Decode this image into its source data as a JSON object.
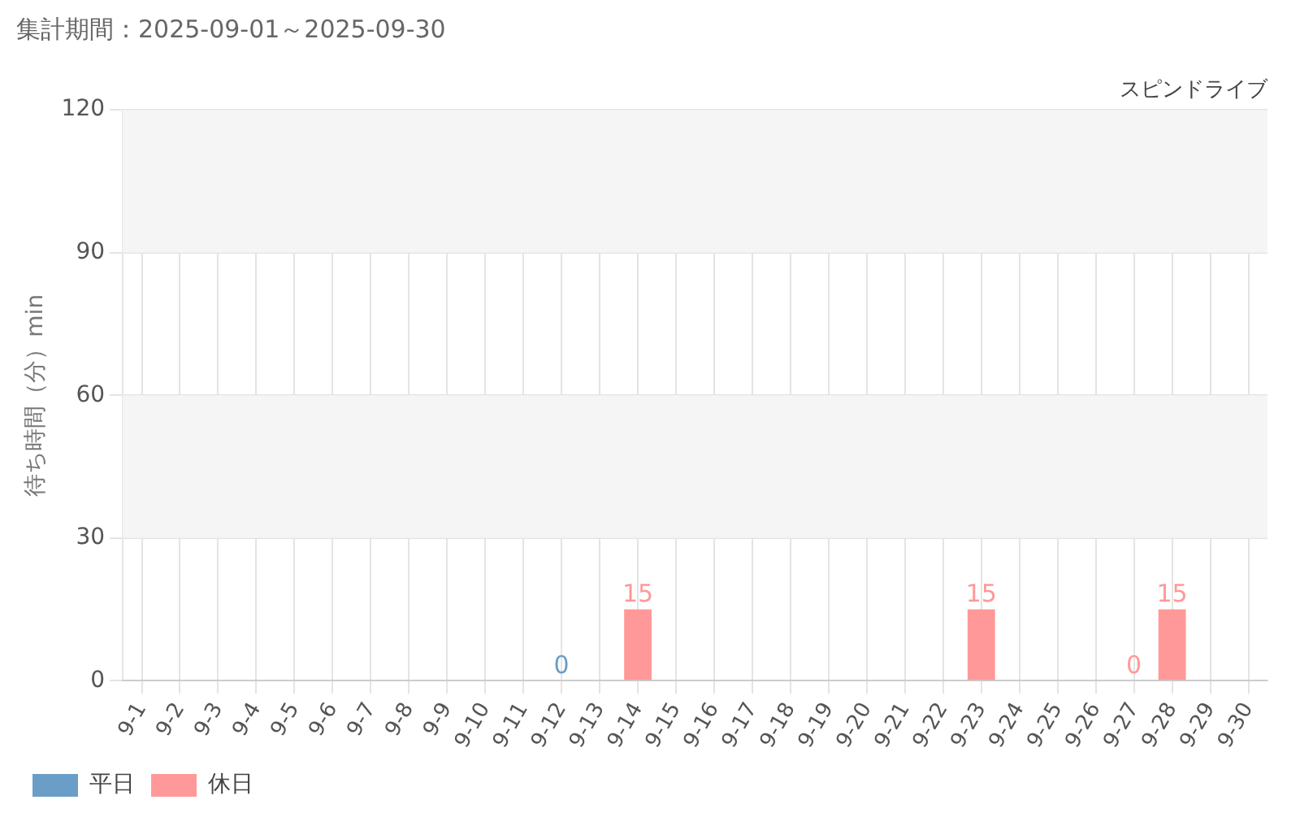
{
  "chart_data": {
    "type": "bar",
    "title": "集計期間：2025-09-01～2025-09-30",
    "subtitle": "スピンドライブ",
    "ylabel": "待ち時間（分）min",
    "categories": [
      "9-1",
      "9-2",
      "9-3",
      "9-4",
      "9-5",
      "9-6",
      "9-7",
      "9-8",
      "9-9",
      "9-10",
      "9-11",
      "9-12",
      "9-13",
      "9-14",
      "9-15",
      "9-16",
      "9-17",
      "9-18",
      "9-19",
      "9-20",
      "9-21",
      "9-22",
      "9-23",
      "9-24",
      "9-25",
      "9-26",
      "9-27",
      "9-28",
      "9-29",
      "9-30"
    ],
    "series": [
      {
        "name": "平日",
        "color": "#6a9ec6",
        "values": [
          null,
          null,
          null,
          null,
          null,
          null,
          null,
          null,
          null,
          null,
          null,
          0,
          null,
          null,
          null,
          null,
          null,
          null,
          null,
          null,
          null,
          null,
          null,
          null,
          null,
          null,
          null,
          null,
          null,
          null
        ]
      },
      {
        "name": "休日",
        "color": "#ff9999",
        "values": [
          null,
          null,
          null,
          null,
          null,
          null,
          null,
          null,
          null,
          null,
          null,
          null,
          null,
          15,
          null,
          null,
          null,
          null,
          null,
          null,
          null,
          null,
          15,
          null,
          null,
          null,
          0,
          15,
          null,
          null
        ]
      }
    ],
    "ylim": [
      0,
      120
    ],
    "yticks": [
      0,
      30,
      60,
      90,
      120
    ],
    "grid": true,
    "legend": "bottom left",
    "data_labels": true,
    "bands": [
      {
        "axis": "y",
        "from": 30,
        "to": 60,
        "color": "#f5f5f5"
      },
      {
        "axis": "y",
        "from": 90,
        "to": 120,
        "color": "#f5f5f5"
      }
    ]
  }
}
